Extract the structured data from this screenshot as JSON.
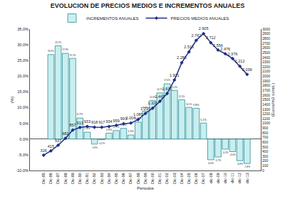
{
  "chart_data": {
    "type": "bar",
    "title": "EVOLUCION DE PRECIOS MEDIOS E INCREMENTOS ANUALES",
    "x_label": "Periodos",
    "y_label": "(%)",
    "y2_label": "(Euros/m2 const.)",
    "categories": [
      "Dic-85",
      "Dic-86",
      "Dic-87",
      "Dic-88",
      "Dic-89",
      "Dic-90",
      "Dic-91",
      "Dic-92",
      "Dic-93",
      "Dic-94",
      "Dic-95",
      "Dic-96",
      "Dic-97",
      "Dic-98",
      "Dic-99",
      "Dic-00",
      "Dic-01",
      "Dic-02",
      "Dic-03",
      "Dic-04",
      "Dic-05",
      "Dic-06",
      "Dic-07",
      "dic-08",
      "dic-09",
      "dic-10",
      "dic-11",
      "dic-12",
      "dic-13"
    ],
    "series": [
      {
        "name": "INCREMENTOS ANUALES",
        "type": "bar",
        "color": "#c9eef0",
        "values": [
          null,
          26.9,
          29.7,
          27.3,
          25.7,
          6.7,
          2.2,
          -1.6,
          -0.2,
          1.9,
          2.7,
          3.4,
          1.3,
          5.4,
          8.9,
          12.3,
          14.7,
          17.6,
          15.5,
          12.5,
          10.1,
          9.8,
          5.1,
          -6.6,
          -5.7,
          -3.2,
          -4.0,
          -6.9,
          -7.8
        ],
        "value_labels": [
          null,
          "26,9%",
          "29,7%",
          "27,3%",
          "25,7%",
          "6,7%",
          "2,2%",
          "-1,6%",
          "-0,2%",
          "1,9%",
          "2,7%",
          "3,4%",
          "1,3%",
          "5,4%",
          "8,9%",
          "12,3%",
          "14,7%",
          "17,6%",
          "15,5%",
          "12,5%",
          "10,1%",
          "9,8%",
          "5,1%",
          "-6,6%",
          "-5,7%",
          "-3,2%",
          "-4,0%",
          "-6,9%",
          "-7,8%"
        ]
      },
      {
        "name": "PRECIOS MEDIOS ANUALES",
        "type": "line",
        "axis": "y2",
        "color": "#1f2f86",
        "marker": "diamond",
        "values": [
          326,
          415,
          537,
          682,
          857,
          913,
          933,
          918,
          917,
          934,
          959,
          993,
          1006,
          1080,
          1210,
          1321,
          1467,
          1635,
          1921,
          2286,
          2516,
          2762,
          2905,
          2712,
          2556,
          2476,
          2376,
          2212,
          2039
        ],
        "value_labels": [
          "326",
          "415",
          "537",
          "682",
          "857",
          "913",
          "933",
          "918",
          "917",
          "934",
          "959",
          "993",
          "1.006",
          "1.080",
          "1.210",
          "1.321",
          "1.467",
          "1.635",
          "1.921",
          "2.286",
          "2.516",
          "2.762",
          "2.905",
          "2.712",
          "2.556",
          "2.476",
          "2.376",
          "2.212",
          "2.039"
        ]
      }
    ],
    "ylim": [
      -10,
      35
    ],
    "yticks": [
      {
        "value": -10,
        "label": "-10,0%"
      },
      {
        "value": -5,
        "label": "-5,0%"
      },
      {
        "value": 0,
        "label": "0,0%"
      },
      {
        "value": 5,
        "label": "5,0%"
      },
      {
        "value": 10,
        "label": "10,0%"
      },
      {
        "value": 15,
        "label": "15,0%"
      },
      {
        "value": 20,
        "label": "20,0%"
      },
      {
        "value": 25,
        "label": "25,0%"
      },
      {
        "value": 30,
        "label": "30,0%"
      },
      {
        "value": 35,
        "label": "35,0%"
      }
    ],
    "y2lim": [
      0,
      3000
    ],
    "y2ticks": [
      0,
      100,
      200,
      300,
      400,
      500,
      600,
      700,
      800,
      900,
      1000,
      1100,
      1200,
      1300,
      1400,
      1500,
      1600,
      1700,
      1800,
      1900,
      2000,
      2100,
      2200,
      2300,
      2400,
      2500,
      2600,
      2700,
      2800,
      2900,
      3000
    ],
    "legend": "top",
    "data_labels": true,
    "grid": false
  }
}
